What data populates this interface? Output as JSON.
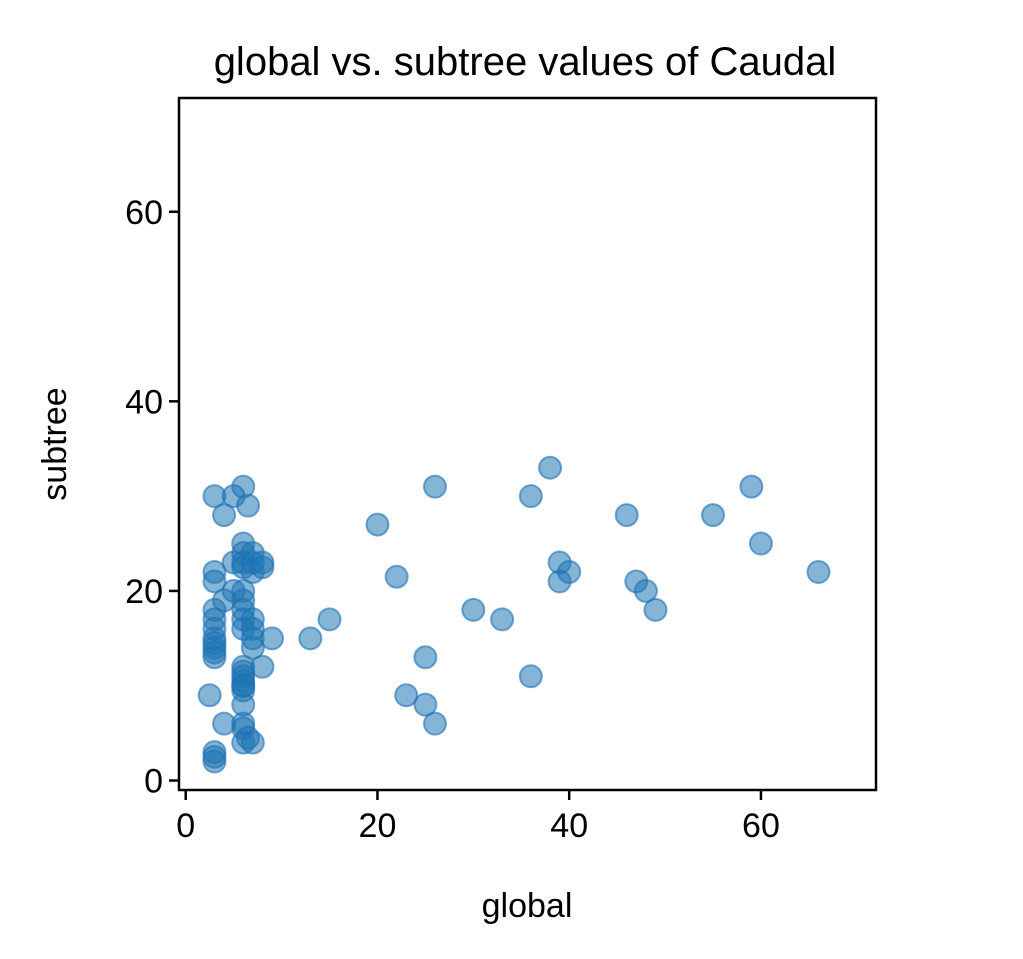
{
  "chart_data": {
    "type": "scatter",
    "title": "global vs. subtree values of Caudal",
    "xlabel": "global",
    "ylabel": "subtree",
    "xlim": [
      -0.7,
      72
    ],
    "ylim": [
      -1,
      72
    ],
    "xticks": [
      0,
      20,
      40,
      60
    ],
    "yticks": [
      0,
      20,
      40,
      60
    ],
    "grid": false,
    "marker_color": "#1f77b4",
    "marker_edge_color": "#1f6fb4",
    "marker_opacity": 0.55,
    "series": [
      {
        "x": [
          3,
          3,
          3,
          3,
          3,
          3,
          3,
          3,
          3,
          3,
          3,
          3,
          3,
          3,
          2.5,
          4,
          4,
          4,
          5,
          5,
          5,
          6,
          6,
          6,
          6,
          6,
          6,
          6,
          6,
          6,
          6,
          6,
          6,
          6,
          6,
          6,
          6,
          6,
          6,
          6,
          6,
          6,
          6.5,
          6.5,
          7,
          7,
          7,
          7,
          7,
          7,
          7,
          7,
          8,
          8,
          8,
          9,
          13,
          15,
          20,
          22,
          23,
          25,
          25,
          26,
          26,
          30,
          33,
          36,
          36,
          38,
          39,
          39,
          40,
          46,
          47,
          48,
          49,
          55,
          59,
          60,
          66
        ],
        "y": [
          30,
          22,
          21,
          18,
          17,
          16,
          15,
          14.5,
          14,
          13.5,
          13,
          3,
          2,
          2.5,
          9,
          28,
          19,
          6,
          30,
          20,
          23,
          31,
          25,
          24,
          23,
          22.5,
          20,
          19,
          18,
          16,
          12,
          11.5,
          11,
          10.5,
          10,
          9.5,
          8,
          6,
          5.5,
          4,
          17,
          10,
          29,
          4.5,
          24,
          23,
          22,
          17,
          16,
          15,
          14,
          4,
          23,
          22.5,
          12,
          15,
          15,
          17,
          27,
          21.5,
          9,
          13,
          8,
          31,
          6,
          18,
          17,
          30,
          11,
          33,
          23,
          21,
          22,
          28,
          21,
          20,
          18,
          28,
          31,
          25,
          22
        ]
      }
    ]
  }
}
